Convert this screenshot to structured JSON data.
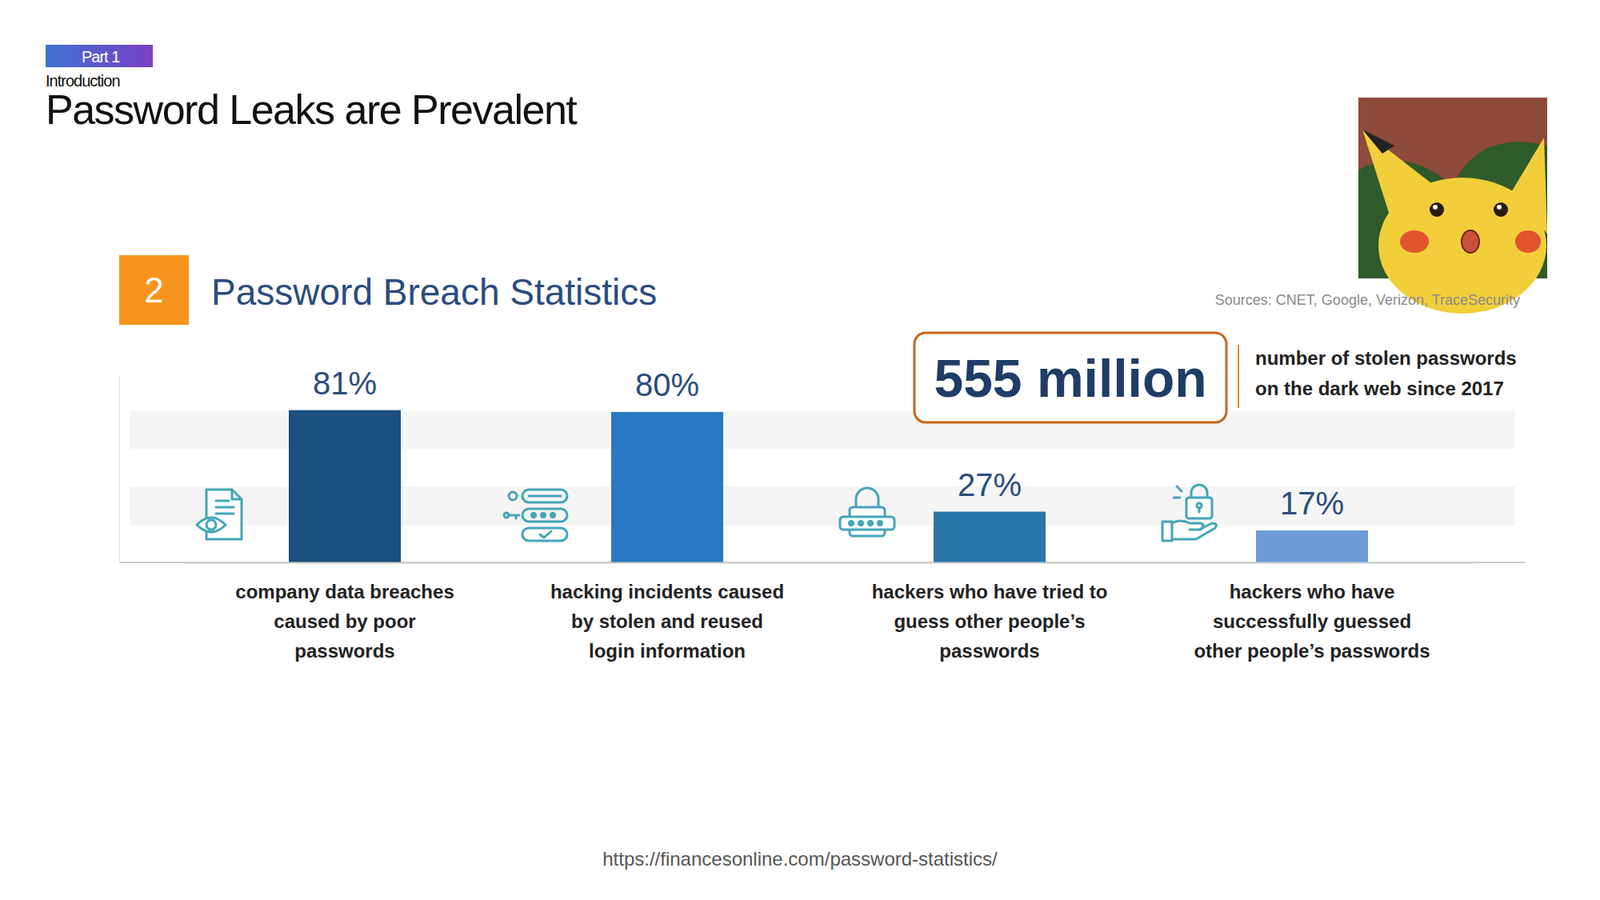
{
  "slide": {
    "section": "Part 1",
    "subsection": "Introduction",
    "title": "Password Leaks are Prevalent",
    "source_url": "https://financesonline.com/password-statistics/"
  },
  "chart_data": {
    "type": "bar",
    "section_number": 2,
    "title": "Password Breach Statistics",
    "source": "Sources: CNET, Google, Verizon, TraceSecurity",
    "annotations": [
      {
        "text": "555 million",
        "label": "number of stolen passwords on the dark web since 2017"
      }
    ],
    "categories": [
      "company data breaches caused by poor passwords",
      "hacking incidents caused by stolen and reused login information",
      "hackers who have tried to guess other people’s passwords",
      "hackers who have successfully guessed other people’s passwords"
    ],
    "values": [
      81,
      80,
      27,
      17
    ],
    "value_labels": [
      "81%",
      "80%",
      "27%",
      "17%"
    ],
    "colors": [
      "#1b4f7f",
      "#2a78c2",
      "#2b76a8",
      "#6a9bd3"
    ],
    "ylim": [
      0,
      100
    ],
    "yticks": [],
    "tick_labels": "x",
    "data_labels": true
  }
}
